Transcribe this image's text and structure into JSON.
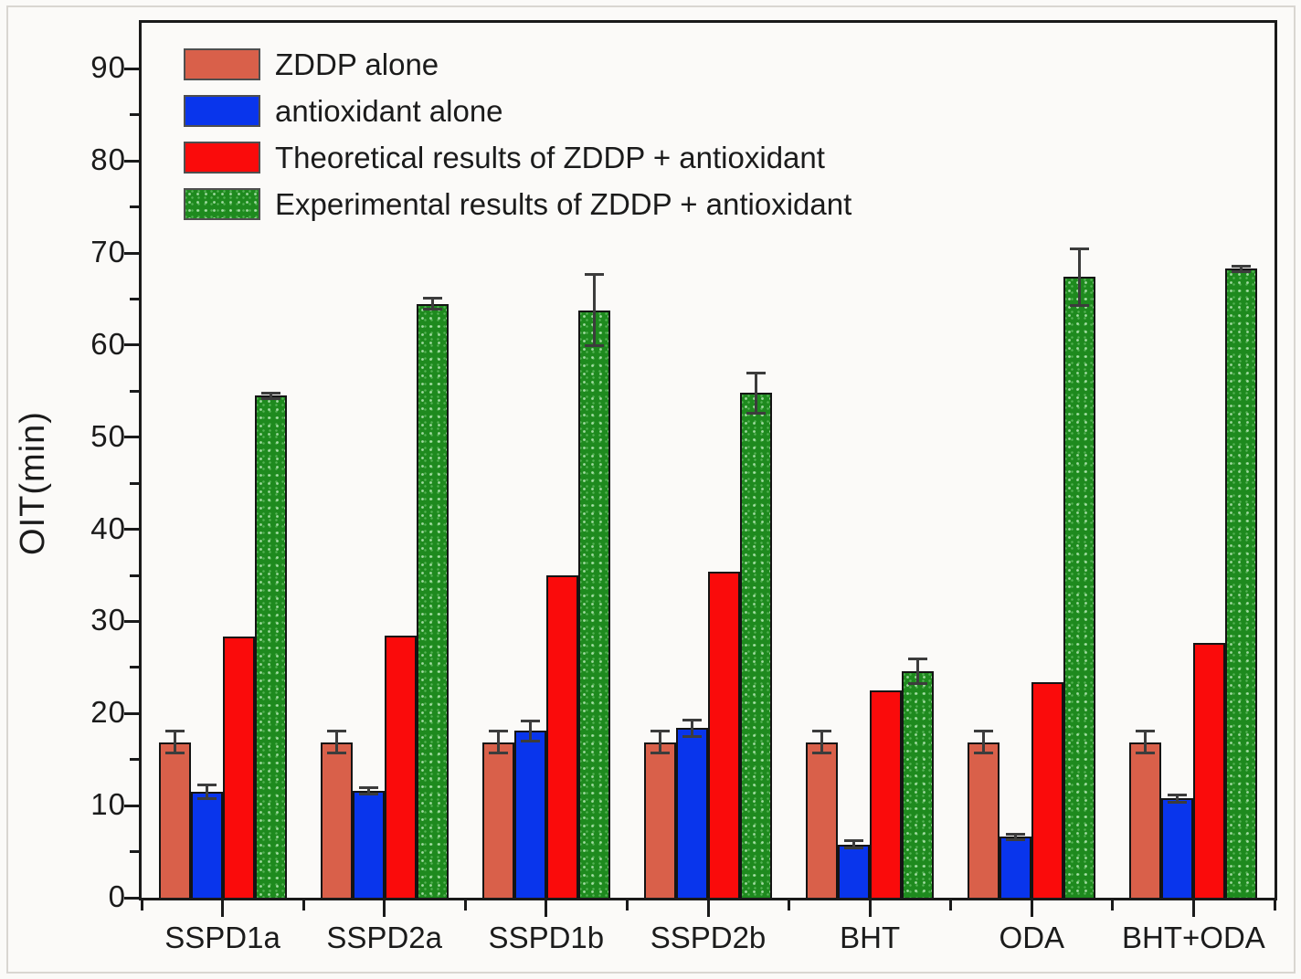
{
  "figure": {
    "background": "#FBFAF8",
    "frame_color": "#1a1a1a"
  },
  "chart_data": {
    "type": "bar",
    "title": "",
    "xlabel": "",
    "ylabel": "OIT(min)",
    "grid": false,
    "legend_position": "top-left-inside",
    "bar_outline_color": "#141414",
    "error_bar_color": "#3c3c3c",
    "y_axis": {
      "label": "OIT(min)",
      "max": 95,
      "min": 0,
      "ticks": [
        0,
        10,
        20,
        30,
        40,
        50,
        60,
        70,
        80,
        90
      ],
      "minor_step": 5
    },
    "categories": [
      "SSPD1a",
      "SSPD2a",
      "SSPD1b",
      "SSPD2b",
      "BHT",
      "ODA",
      "BHT+ODA"
    ],
    "series": [
      {
        "name": "ZDDP alone",
        "color": "#D9604A",
        "pattern": "solid",
        "values": [
          16.9,
          16.9,
          16.9,
          16.9,
          16.9,
          16.9,
          16.9
        ],
        "errors": [
          1.2,
          1.2,
          1.2,
          1.2,
          1.2,
          1.2,
          1.2
        ]
      },
      {
        "name": "antioxidant alone",
        "color": "#0935EC",
        "pattern": "solid",
        "values": [
          11.5,
          11.6,
          18.1,
          18.4,
          5.8,
          6.6,
          10.8
        ],
        "errors": [
          0.7,
          0.3,
          1.1,
          0.9,
          0.4,
          0.3,
          0.4
        ]
      },
      {
        "name": "Theoretical results of ZDDP + antioxidant",
        "color": "#FA0B0B",
        "pattern": "solid",
        "values": [
          28.4,
          28.5,
          35.0,
          35.4,
          22.5,
          23.4,
          27.7
        ],
        "errors": [
          0,
          0,
          0,
          0,
          0,
          0,
          0
        ]
      },
      {
        "name": "Experimental results of ZDDP + antioxidant",
        "color": "#1E8A1E",
        "pattern": "dotted",
        "values": [
          54.5,
          64.5,
          63.8,
          54.8,
          24.6,
          67.4,
          68.3
        ],
        "errors": [
          0.3,
          0.6,
          3.9,
          2.2,
          1.3,
          3.1,
          0.3
        ]
      }
    ]
  }
}
